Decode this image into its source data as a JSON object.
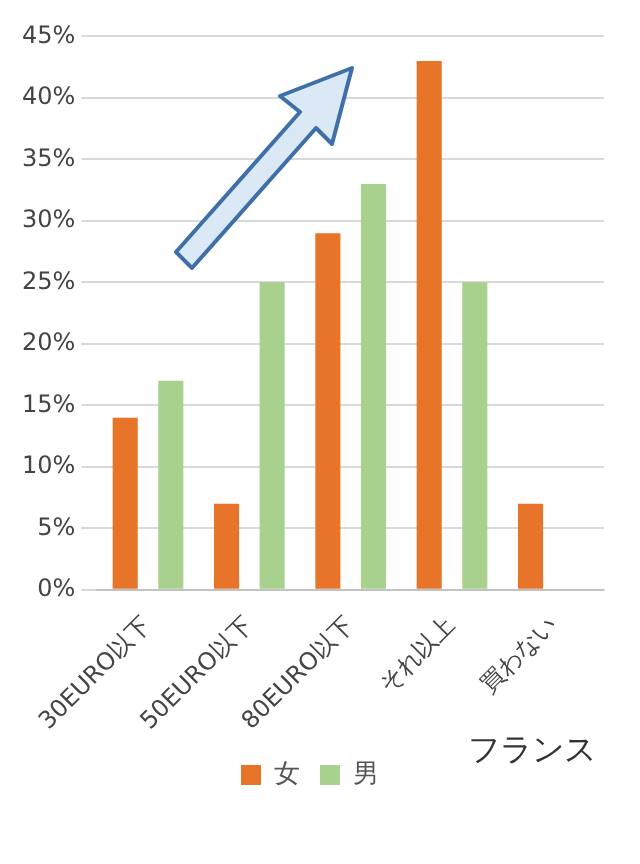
{
  "chart_data": {
    "type": "bar",
    "categories": [
      "30EURO以下",
      "50EURO以下",
      "80EURO以下",
      "それ以上",
      "買わない"
    ],
    "series": [
      {
        "name": "女",
        "color": "#e8742a",
        "values": [
          14,
          7,
          29,
          43,
          7
        ]
      },
      {
        "name": "男",
        "color": "#a9d18e",
        "values": [
          17,
          25,
          33,
          25,
          0
        ]
      }
    ],
    "ylim": [
      0,
      45
    ],
    "yticks": [
      {
        "value": 0,
        "label": "0%"
      },
      {
        "value": 5,
        "label": "5%"
      },
      {
        "value": 10,
        "label": "10%"
      },
      {
        "value": 15,
        "label": "15%"
      },
      {
        "value": 20,
        "label": "20%"
      },
      {
        "value": 25,
        "label": "25%"
      },
      {
        "value": 30,
        "label": "30%"
      },
      {
        "value": 35,
        "label": "35%"
      },
      {
        "value": 40,
        "label": "40%"
      },
      {
        "value": 45,
        "label": "45%"
      }
    ],
    "grid": "y",
    "legend": "bottom",
    "annotations": [
      "フランス"
    ]
  }
}
